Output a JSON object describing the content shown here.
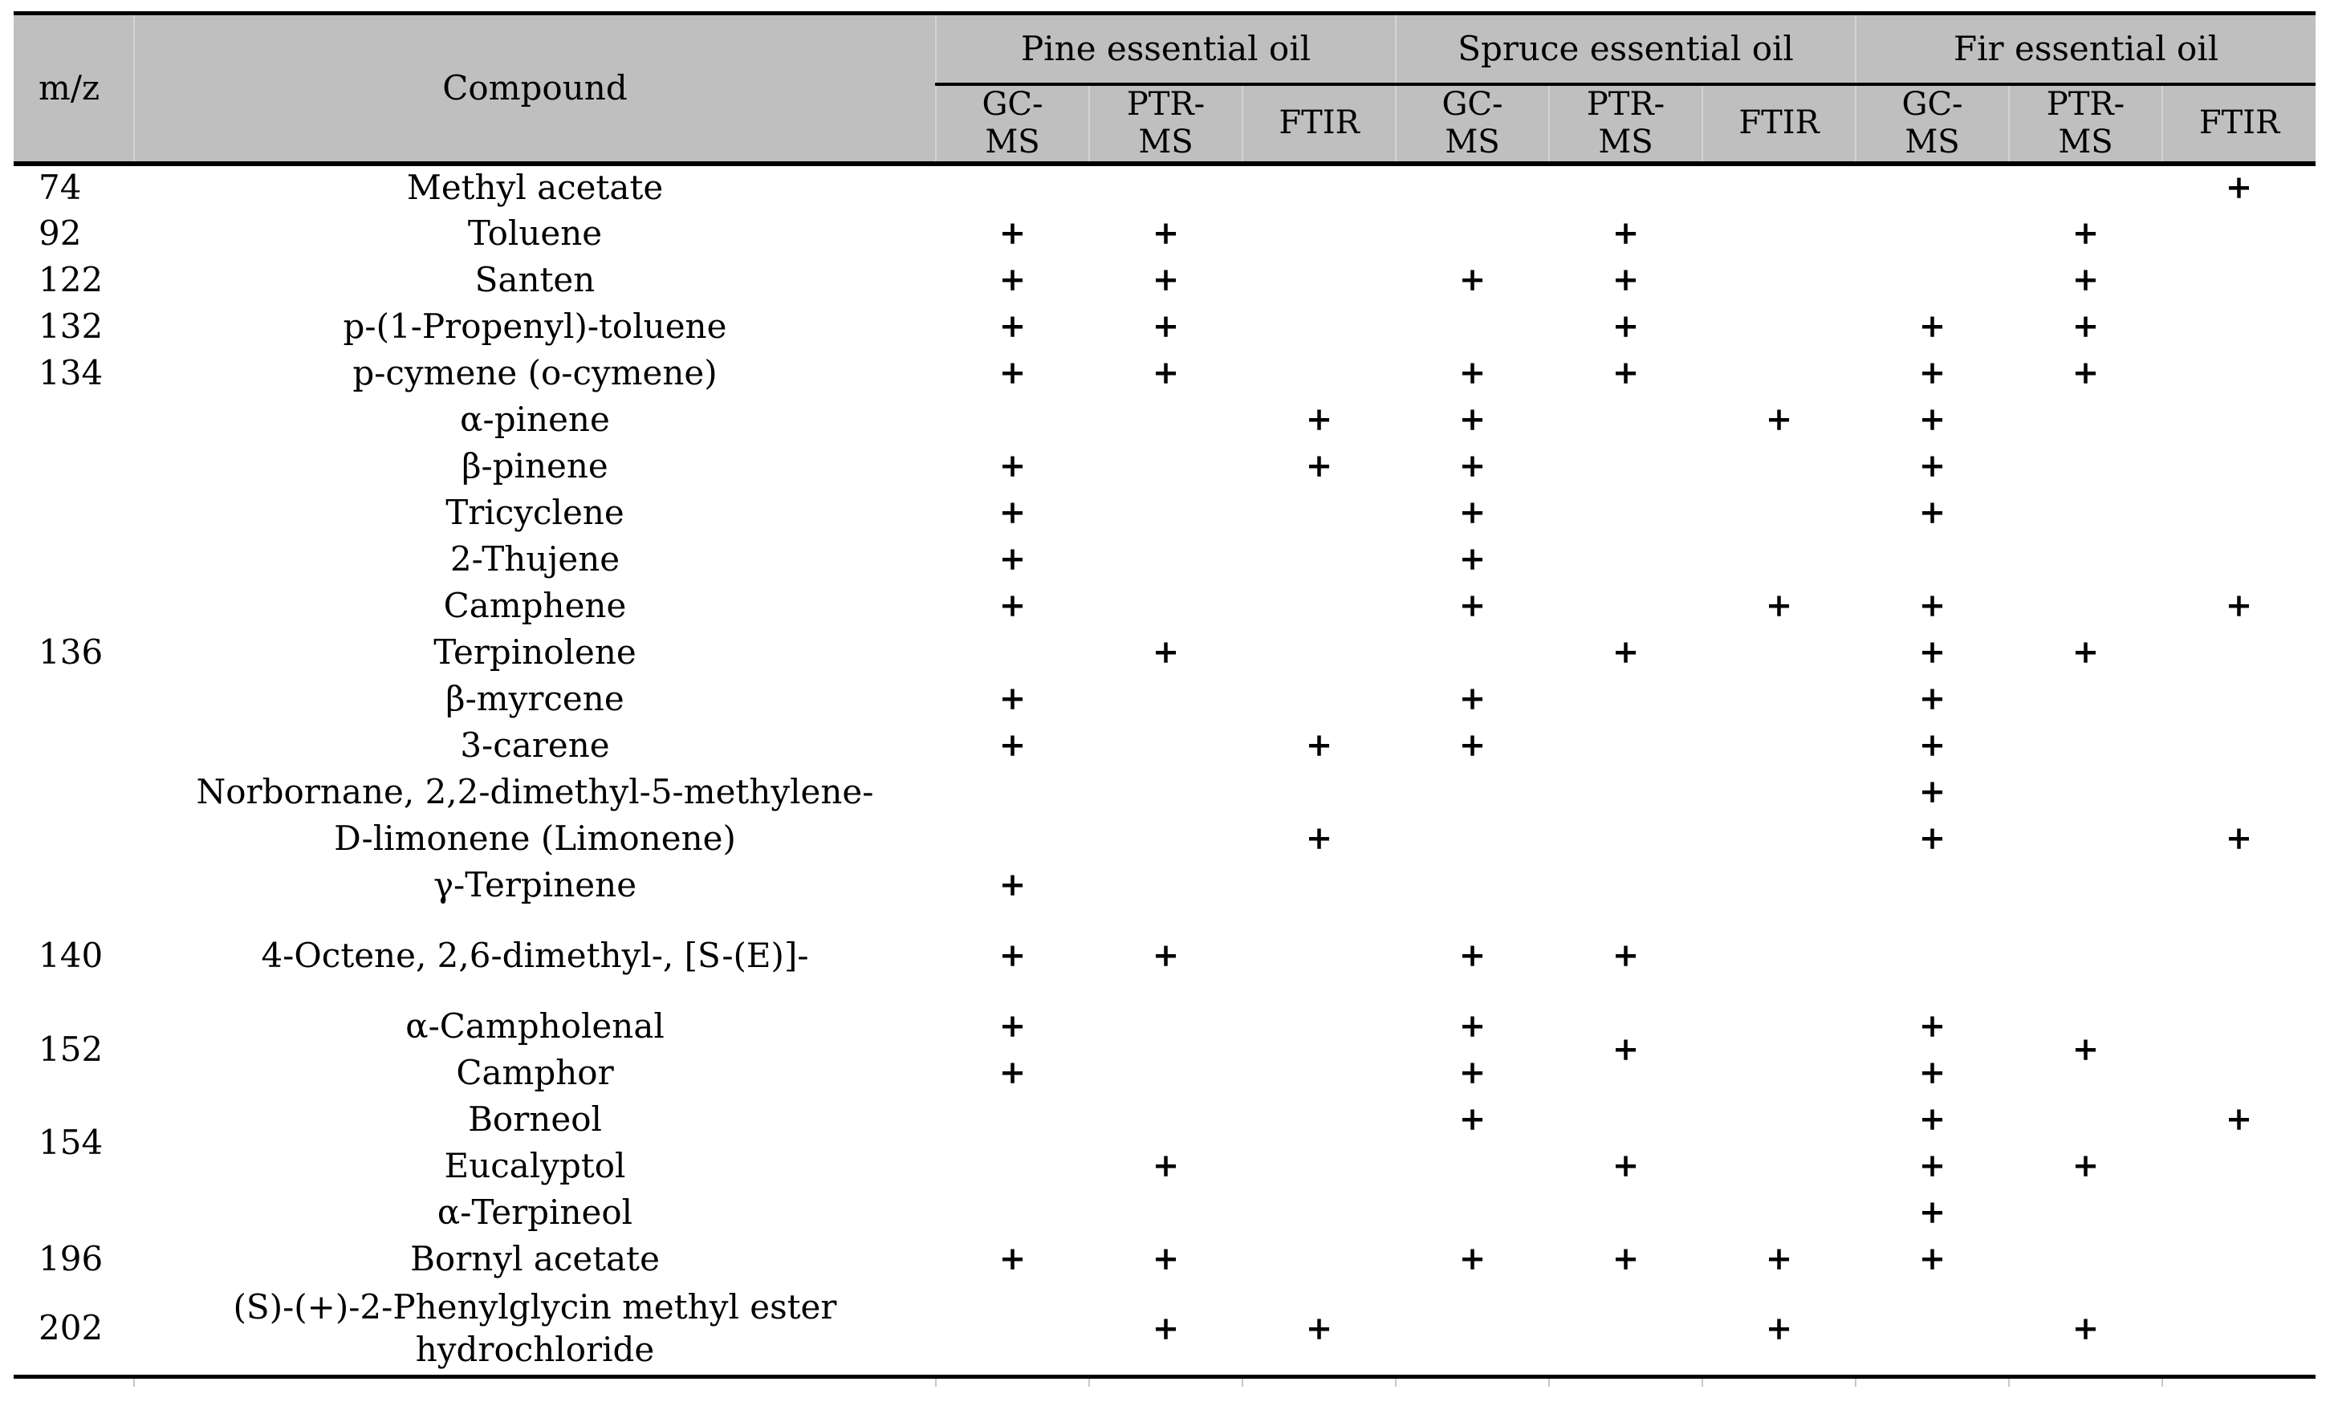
{
  "doc_type": "scientific-table",
  "colors": {
    "header_bg": "#bfbfbf",
    "border": "#000000",
    "header_separator": "#d4d4d4",
    "text": "#000000"
  },
  "table": {
    "header": {
      "mz": "m/z",
      "compound": "Compound",
      "groups": [
        {
          "label": "Pine essential oil"
        },
        {
          "label": "Spruce essential oil"
        },
        {
          "label": "Fir essential oil"
        }
      ],
      "method_lines": [
        [
          "GC-",
          "MS"
        ],
        [
          "PTR-",
          "MS"
        ],
        [
          "FTIR"
        ]
      ]
    },
    "columns": [
      "pine-gcms",
      "pine-ptrms",
      "pine-ftir",
      "spruce-gcms",
      "spruce-ptrms",
      "spruce-ftir",
      "fir-gcms",
      "fir-ptrms",
      "fir-ftir"
    ],
    "plus": "+",
    "rows": [
      {
        "mz": "74",
        "compound": "Methyl acetate",
        "marks": [
          "",
          "",
          "",
          "",
          "",
          "",
          "",
          "",
          "+"
        ]
      },
      {
        "mz": "92",
        "compound": "Toluene",
        "marks": [
          "+",
          "+",
          "",
          "",
          "+",
          "",
          "",
          "+",
          ""
        ]
      },
      {
        "mz": "122",
        "compound": "Santen",
        "marks": [
          "+",
          "+",
          "",
          "+",
          "+",
          "",
          "",
          "+",
          ""
        ]
      },
      {
        "mz": "132",
        "compound": "p-(1-Propenyl)-toluene",
        "marks": [
          "+",
          "+",
          "",
          "",
          "+",
          "",
          "+",
          "+",
          ""
        ]
      },
      {
        "mz": "134",
        "compound": "p-cymene (o-cymene)",
        "marks": [
          "+",
          "+",
          "",
          "+",
          "+",
          "",
          "+",
          "+",
          ""
        ]
      },
      {
        "mz": {
          "v": "136",
          "rs": 11
        },
        "compound": "α-pinene",
        "marks": [
          "",
          "",
          "+",
          "+",
          "",
          "+",
          "+",
          "",
          ""
        ]
      },
      {
        "compound": "β-pinene",
        "marks": [
          "+",
          "",
          "+",
          "+",
          "",
          "",
          "+",
          "",
          ""
        ]
      },
      {
        "compound": "Tricyclene",
        "marks": [
          "+",
          "",
          "",
          "+",
          "",
          "",
          "+",
          "",
          ""
        ]
      },
      {
        "compound": "2-Thujene",
        "marks": [
          "+",
          "",
          "",
          "+",
          "",
          "",
          "",
          "",
          ""
        ]
      },
      {
        "compound": "Camphene",
        "marks": [
          "+",
          "",
          "",
          "+",
          "",
          "+",
          "+",
          "",
          "+"
        ]
      },
      {
        "compound": "Terpinolene",
        "marks": [
          "",
          "+",
          "",
          "",
          "+",
          "",
          "+",
          "+",
          ""
        ]
      },
      {
        "compound": "β-myrcene",
        "marks": [
          "+",
          "",
          "",
          "+",
          "",
          "",
          "+",
          "",
          ""
        ]
      },
      {
        "compound": "3-carene",
        "marks": [
          "+",
          "",
          "+",
          "+",
          "",
          "",
          "+",
          "",
          ""
        ]
      },
      {
        "compound": "Norbornane, 2,2-dimethyl-5-methylene-",
        "marks": [
          "",
          "",
          "",
          "",
          "",
          "",
          "+",
          "",
          ""
        ]
      },
      {
        "compound": "D-limonene (Limonene)",
        "marks": [
          "",
          "",
          "+",
          "",
          "",
          "",
          "+",
          "",
          "+"
        ]
      },
      {
        "compound": "γ-Terpinene",
        "marks": [
          "+",
          "",
          "",
          "",
          "",
          "",
          "",
          "",
          ""
        ]
      },
      {
        "mz": "140",
        "tall": true,
        "compound": "4-Octene, 2,6-dimethyl-, [S-(E)]-",
        "marks": [
          "+",
          "+",
          "",
          "+",
          "+",
          "",
          "",
          "",
          ""
        ]
      },
      {
        "mz": {
          "v": "152",
          "rs": 2
        },
        "compound": "α-Campholenal",
        "marks": [
          "+",
          "",
          "",
          "+",
          {
            "v": "+",
            "rs": 2
          },
          "",
          "+",
          {
            "v": "+",
            "rs": 2
          },
          ""
        ]
      },
      {
        "compound": "Camphor",
        "marks": [
          "+",
          "",
          "",
          "+",
          null,
          "",
          "+",
          null,
          ""
        ]
      },
      {
        "mz": {
          "v": "154",
          "rs": 2
        },
        "compound": "Borneol",
        "marks": [
          "",
          "",
          "",
          "+",
          "",
          "",
          "+",
          "",
          "+"
        ]
      },
      {
        "compound": "Eucalyptol",
        "marks": [
          "",
          "+",
          "",
          "",
          "+",
          "",
          "+",
          "+",
          ""
        ]
      },
      {
        "mz": "",
        "compound": "α-Terpineol",
        "marks": [
          "",
          "",
          "",
          "",
          "",
          "",
          "+",
          "",
          ""
        ]
      },
      {
        "mz": "196",
        "compound": "Bornyl acetate",
        "marks": [
          "+",
          "+",
          "",
          "+",
          "+",
          "+",
          "+",
          "",
          ""
        ]
      },
      {
        "mz": "202",
        "tall": true,
        "compound": [
          "(S)-(+)-2-Phenylglycin methyl ester",
          "hydrochloride"
        ],
        "marks": [
          "",
          "+",
          "+",
          "",
          "",
          "+",
          "",
          "+",
          ""
        ]
      }
    ]
  }
}
